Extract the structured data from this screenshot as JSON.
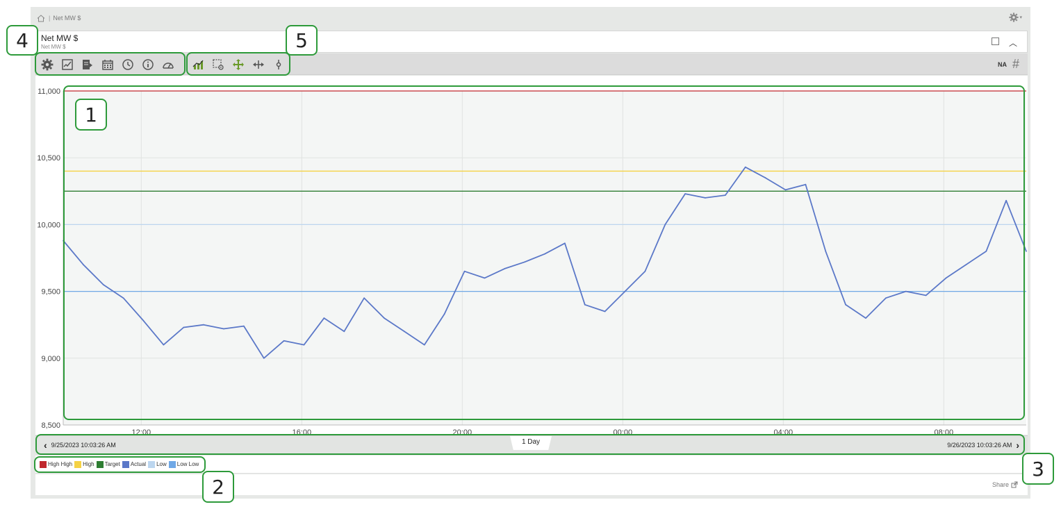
{
  "breadcrumb": {
    "home_icon": "home-icon",
    "separator": "|",
    "text": "Net MW $"
  },
  "panel": {
    "title": "Net MW $",
    "subtitle": "Net MW $"
  },
  "toolbar": {
    "left_icons": [
      "gear-icon",
      "chart-edit-icon",
      "export-icon",
      "calendar-icon",
      "history-icon",
      "info-icon",
      "gauge-icon"
    ],
    "right_icons": [
      "trend-icon",
      "zoom-select-icon",
      "pan-icon",
      "horizontal-pan-icon",
      "cursor-icon"
    ],
    "na_label": "NA",
    "hash_label": "#"
  },
  "colors": {
    "high_high": "#c0282d",
    "high": "#f5d245",
    "target": "#2e7d32",
    "actual": "#5b78c8",
    "low": "#bcd6ef",
    "low_low": "#6fa8e6",
    "callout": "#2d9a3a",
    "toolbar_green": "#6a9a2a"
  },
  "chart_data": {
    "type": "line",
    "ylim": [
      8500,
      11000
    ],
    "yticks": [
      "11,000",
      "10,500",
      "10,000",
      "9,500",
      "9,000",
      "8,500"
    ],
    "ytick_values": [
      11000,
      10500,
      10000,
      9500,
      9000,
      8500
    ],
    "xticks": [
      "12:00",
      "16:00",
      "20:00",
      "00:00",
      "04:00",
      "08:00"
    ],
    "xtick_hours": [
      1.945,
      5.945,
      9.945,
      13.945,
      17.945,
      21.945
    ],
    "x_range_hours": [
      0,
      24
    ],
    "grid": true,
    "limits": [
      {
        "name": "High High",
        "value": 11000,
        "color": "#c0282d"
      },
      {
        "name": "High",
        "value": 10400,
        "color": "#f5d245"
      },
      {
        "name": "Target",
        "value": 10250,
        "color": "#2e7d32"
      },
      {
        "name": "Low",
        "value": 10000,
        "color": "#bcd6ef"
      },
      {
        "name": "Low Low",
        "value": 9500,
        "color": "#6fa8e6"
      }
    ],
    "series": [
      {
        "name": "Actual",
        "color": "#5b78c8",
        "x": [
          0,
          0.5,
          1,
          1.5,
          2,
          2.5,
          3,
          3.5,
          4,
          4.5,
          5,
          5.5,
          6,
          6.5,
          7,
          7.5,
          8,
          8.5,
          9,
          9.5,
          10,
          10.5,
          11,
          11.5,
          12,
          12.5,
          13,
          13.5,
          14,
          14.5,
          15,
          15.5,
          16,
          16.5,
          17,
          17.5,
          18,
          18.5,
          19,
          19.5,
          20,
          20.5,
          21,
          21.5,
          22,
          22.5,
          23,
          23.5,
          24
        ],
        "values": [
          9880,
          9700,
          9550,
          9450,
          9280,
          9100,
          9230,
          9250,
          9220,
          9240,
          9000,
          9130,
          9100,
          9300,
          9200,
          9450,
          9300,
          9200,
          9100,
          9330,
          9650,
          9600,
          9670,
          9720,
          9780,
          9860,
          9400,
          9350,
          9500,
          9650,
          10000,
          10230,
          10200,
          10220,
          10430,
          10350,
          10260,
          10300,
          9800,
          9400,
          9300,
          9450,
          9500,
          9470,
          9600,
          9700,
          9800,
          10180,
          9800
        ]
      }
    ]
  },
  "navigator": {
    "start": "9/25/2023 10:03:26 AM",
    "end": "9/26/2023 10:03:26 AM",
    "range_label": "1 Day"
  },
  "legend": [
    {
      "label": "High High",
      "color": "#c0282d"
    },
    {
      "label": "High",
      "color": "#f5d245"
    },
    {
      "label": "Target",
      "color": "#2e7d32"
    },
    {
      "label": "Actual",
      "color": "#5b78c8"
    },
    {
      "label": "Low",
      "color": "#bcd6ef"
    },
    {
      "label": "Low Low",
      "color": "#6fa8e6"
    }
  ],
  "footer": {
    "share_label": "Share"
  },
  "callouts": [
    "1",
    "2",
    "3",
    "4",
    "5"
  ]
}
